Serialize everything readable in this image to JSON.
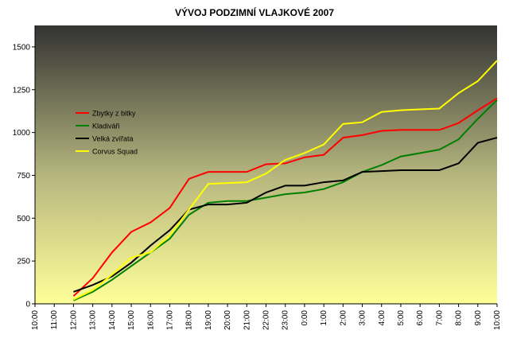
{
  "chart_data": {
    "type": "line",
    "title": "VÝVOJ PODZIMNÍ VLAJKOVÉ 2007",
    "categories": [
      "10:00",
      "11:00",
      "12:00",
      "13:00",
      "14:00",
      "15:00",
      "16:00",
      "17:00",
      "18:00",
      "19:00",
      "20:00",
      "21:00",
      "22:00",
      "23:00",
      "0:00",
      "1:00",
      "2:00",
      "3:00",
      "4:00",
      "5:00",
      "6:00",
      "7:00",
      "8:00",
      "9:00",
      "10:00"
    ],
    "series": [
      {
        "name": "Zbytky z bitky",
        "color": "#ff0000",
        "values": [
          null,
          null,
          45,
          150,
          300,
          420,
          475,
          560,
          730,
          770,
          770,
          770,
          815,
          820,
          855,
          870,
          970,
          985,
          1010,
          1015,
          1015,
          1015,
          1055,
          1130,
          1200
        ]
      },
      {
        "name": "Kladiváři",
        "color": "#008000",
        "values": [
          null,
          null,
          20,
          70,
          140,
          220,
          300,
          380,
          520,
          590,
          600,
          600,
          620,
          640,
          650,
          670,
          710,
          770,
          810,
          860,
          880,
          900,
          960,
          1080,
          1190
        ]
      },
      {
        "name": "Velká zvířata",
        "color": "#000000",
        "values": [
          null,
          null,
          70,
          110,
          160,
          240,
          340,
          430,
          550,
          580,
          580,
          590,
          650,
          690,
          690,
          710,
          720,
          770,
          775,
          780,
          780,
          780,
          820,
          940,
          970
        ]
      },
      {
        "name": "Corvus Squad",
        "color": "#ffff00",
        "values": [
          null,
          null,
          25,
          80,
          170,
          270,
          300,
          400,
          550,
          700,
          705,
          710,
          760,
          840,
          880,
          930,
          1050,
          1060,
          1120,
          1130,
          1135,
          1140,
          1230,
          1300,
          1420
        ]
      }
    ],
    "ylim": [
      0,
      1625
    ],
    "yticks": [
      0,
      250,
      500,
      750,
      1000,
      1250,
      1500
    ],
    "legend": "left"
  }
}
